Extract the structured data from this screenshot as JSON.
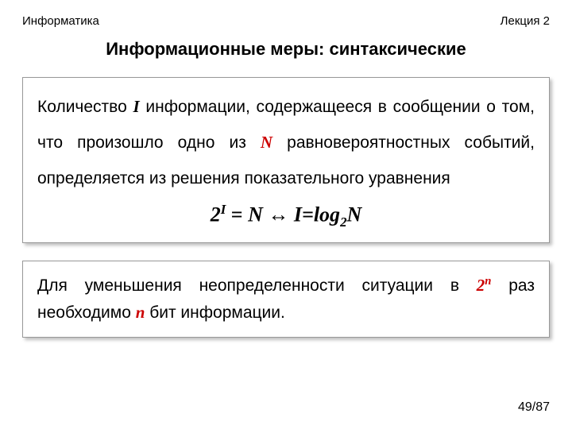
{
  "header": {
    "left": "Информатика",
    "right": "Лекция 2"
  },
  "title": "Информационные меры: синтаксические",
  "box1": {
    "t1": "Количество ",
    "I": "I",
    "t2": " информации, содержащееся в сообщении о том, что произошло одно из ",
    "N": "N",
    "t3": " равновероятностных событий, определяется из решения показательного уравнения",
    "formula_left_2": "2",
    "formula_left_I": "I",
    "formula_eq1": " = ",
    "formula_N": "N",
    "formula_arrow": "   ↔   ",
    "formula_Ieq": "I=log",
    "formula_sub2": "2",
    "formula_N2": "N"
  },
  "box2": {
    "t1": "Для уменьшения неопределенности ситуации в ",
    "two": "2",
    "n_sup": "n",
    "t2": " раз необходимо ",
    "n": "n",
    "t3": " бит информации."
  },
  "footer": "49/87",
  "colors": {
    "red": "#cc0000"
  }
}
